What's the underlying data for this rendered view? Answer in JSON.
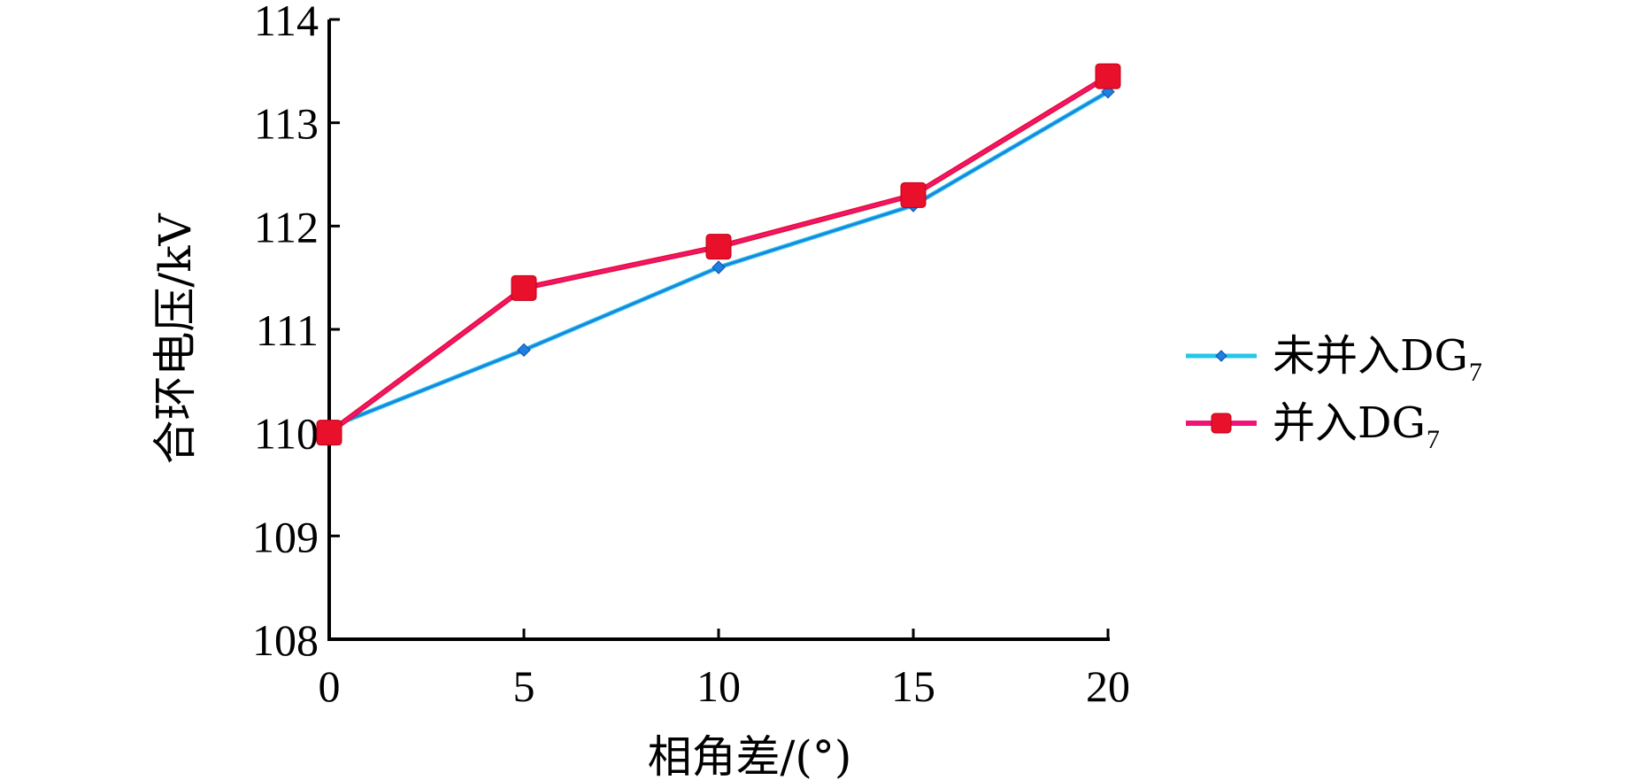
{
  "chart_data": {
    "type": "line",
    "xlabel": "相角差/(°)",
    "ylabel": "合环电压/kV",
    "x": [
      0,
      5,
      10,
      15,
      20
    ],
    "xticks": [
      "0",
      "5",
      "10",
      "15",
      "20"
    ],
    "yticks": [
      "108",
      "109",
      "110",
      "111",
      "112",
      "113",
      "114"
    ],
    "xlim": [
      0,
      20
    ],
    "ylim": [
      108,
      114
    ],
    "grid": false,
    "legend_position": "right",
    "series": [
      {
        "name": "未并入DG",
        "name_subscript": "7",
        "values": [
          110.05,
          110.8,
          111.6,
          112.2,
          113.3
        ],
        "color": "#1e7fe0",
        "marker": "diamond"
      },
      {
        "name": "并入DG",
        "name_subscript": "7",
        "values": [
          110.0,
          111.4,
          111.8,
          112.3,
          113.45
        ],
        "color": "#f0147a",
        "marker_color": "#e8102a",
        "marker": "square"
      }
    ]
  }
}
